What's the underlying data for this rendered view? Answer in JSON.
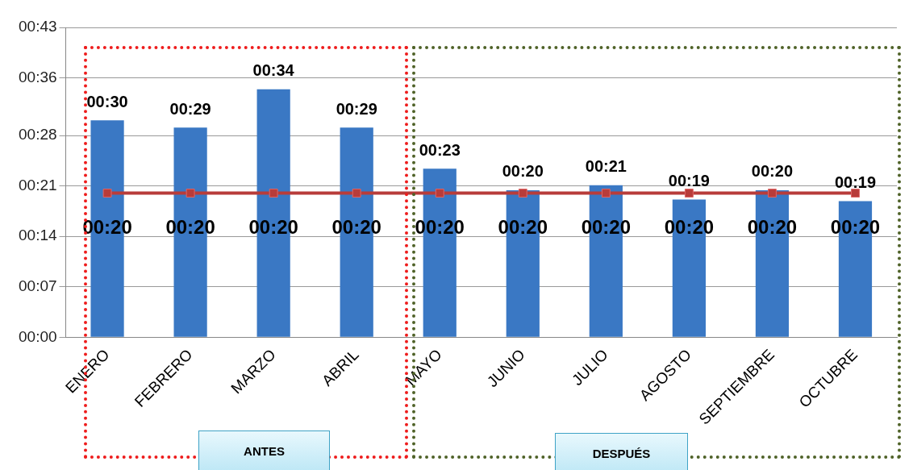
{
  "chart_data": {
    "type": "bar",
    "categories": [
      "ENERO",
      "FEBRERO",
      "MARZO",
      "ABRIL",
      "MAYO",
      "JUNIO",
      "JULIO",
      "AGOSTO",
      "SEPTIEMBRE",
      "OCTUBRE"
    ],
    "series": [
      {
        "color": "#3a78c4",
        "values": [
          30.1,
          29.1,
          34.4,
          29.1,
          23.4,
          20.4,
          21.1,
          19.1,
          20.4,
          18.9
        ],
        "value_labels": [
          "00:30",
          "00:29",
          "00:34",
          "00:29",
          "00:23",
          "00:20",
          "00:21",
          "00:19",
          "00:20",
          "00:19"
        ]
      },
      {
        "type": "line",
        "color": "#b83c3a",
        "values": [
          20,
          20,
          20,
          20,
          20,
          20,
          20,
          20,
          20,
          20
        ],
        "value_labels": [
          "00:20",
          "00:20",
          "00:20",
          "00:20",
          "00:20",
          "00:20",
          "00:20",
          "00:20",
          "00:20",
          "00:20"
        ],
        "marker": "square"
      }
    ],
    "ylim": [
      0,
      43
    ],
    "yticks": [
      {
        "value": 0,
        "label": "00:00"
      },
      {
        "value": 7,
        "label": "00:07"
      },
      {
        "value": 14,
        "label": "00:14"
      },
      {
        "value": 21,
        "label": "00:21"
      },
      {
        "value": 28,
        "label": "00:28"
      },
      {
        "value": 36,
        "label": "00:36"
      },
      {
        "value": 43,
        "label": "00:43"
      }
    ],
    "grid": "y",
    "legend": false,
    "annotations": [
      "ANTES",
      "DESPUÉS"
    ]
  }
}
